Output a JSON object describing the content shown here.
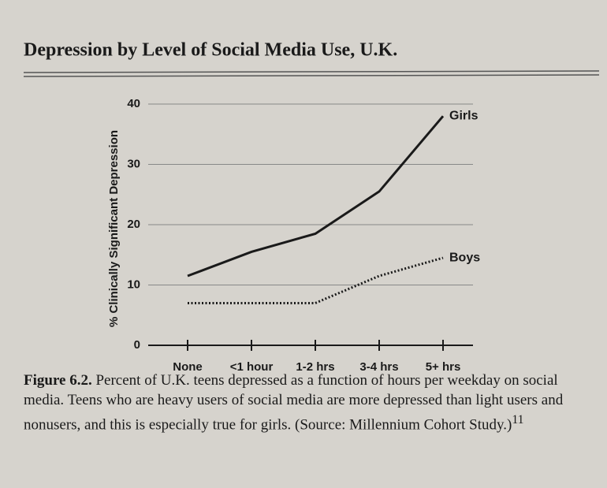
{
  "chart_data": {
    "type": "line",
    "title": "Depression by Level of Social Media Use, U.K.",
    "y_label": "% Clinically Significant Depression",
    "categories": [
      "None",
      "<1 hour",
      "1-2 hrs",
      "3-4 hrs",
      "5+ hrs"
    ],
    "series": [
      {
        "name": "Girls",
        "color": "#1a1a1a",
        "style": "solid",
        "values": [
          11.5,
          15.5,
          18.5,
          25.5,
          38
        ]
      },
      {
        "name": "Boys",
        "color": "#1a1a1a",
        "style": "dotted",
        "values": [
          7,
          7,
          7,
          11.5,
          14.5
        ]
      }
    ],
    "ylim": [
      0,
      40
    ],
    "yticks": [
      0,
      10,
      20,
      30,
      40
    ],
    "grid": true,
    "caption": {
      "label": "Figure 6.2.",
      "text": "Percent of U.K. teens depressed as a function of hours per weekday on social media. Teens who are heavy users of social media are more depressed than light users and nonusers, and this is especially true for girls. (Source: Millennium Cohort Study.)",
      "note": "11"
    }
  }
}
